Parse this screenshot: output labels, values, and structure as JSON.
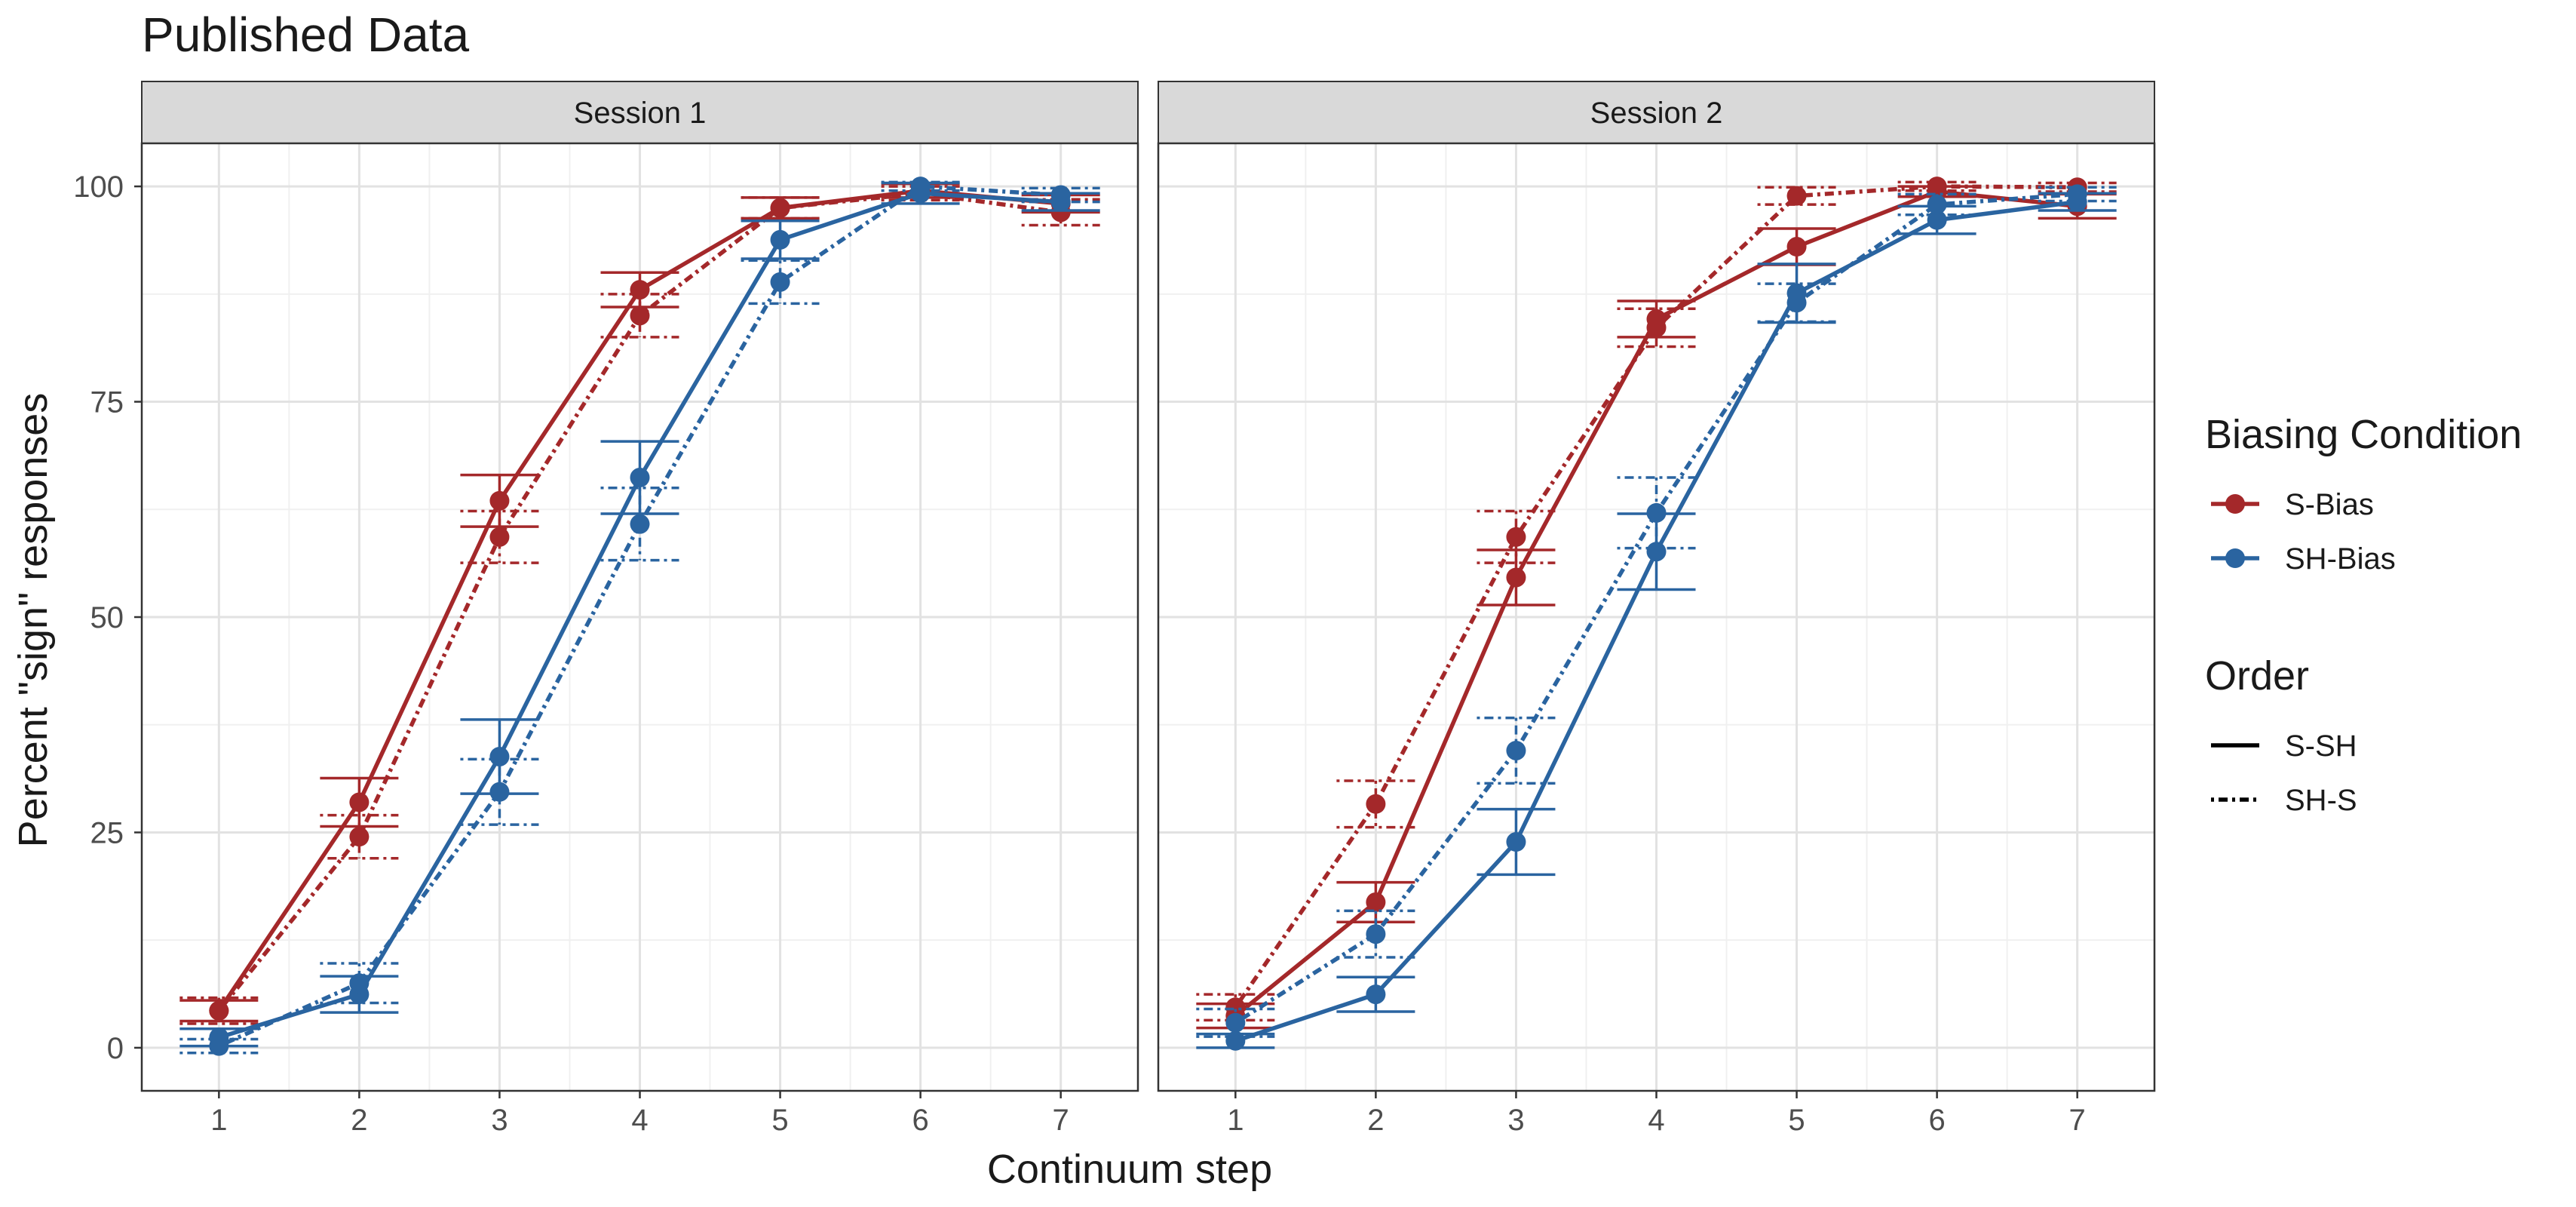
{
  "chart_data": {
    "type": "line",
    "title": "Published Data",
    "xlabel": "Continuum step",
    "ylabel": "Percent \"sign\" responses",
    "x": [
      1,
      2,
      3,
      4,
      5,
      6,
      7
    ],
    "xlim": [
      0.45,
      7.55
    ],
    "ylim": [
      -5,
      105
    ],
    "yticks": [
      0,
      25,
      50,
      75,
      100
    ],
    "grid": true,
    "colors": {
      "S-Bias": "#a4282a",
      "SH-Bias": "#2a64a0"
    },
    "legend_position": "right",
    "legend": {
      "color_title": "Biasing Condition",
      "color_items": [
        "S-Bias",
        "SH-Bias"
      ],
      "linetype_title": "Order",
      "linetype_items": [
        "S-SH",
        "SH-S"
      ]
    },
    "panels": [
      {
        "strip": "Session 1",
        "series": [
          {
            "condition": "S-Bias",
            "order": "S-SH",
            "y": [
              4.3,
              28.5,
              63.5,
              88,
              97.5,
              99.5,
              98
            ],
            "err": [
              1.2,
              2.8,
              3,
              2,
              1.2,
              0.8,
              1
            ]
          },
          {
            "condition": "S-Bias",
            "order": "SH-S",
            "y": [
              4.3,
              24.5,
              59.3,
              85,
              97.5,
              99.2,
              97
            ],
            "err": [
              1.5,
              2.5,
              3,
              2.5,
              1.2,
              0.8,
              1.5
            ]
          },
          {
            "condition": "SH-Bias",
            "order": "S-SH",
            "y": [
              1.2,
              6.2,
              33.8,
              66.2,
              93.8,
              99.2,
              98.2
            ],
            "err": [
              1,
              2.1,
              4.3,
              4.2,
              2.2,
              1.2,
              1
            ]
          },
          {
            "condition": "SH-Bias",
            "order": "SH-S",
            "y": [
              0.2,
              7.5,
              29.7,
              60.8,
              88.9,
              100,
              99
            ],
            "err": [
              0.8,
              2.3,
              3.8,
              4.2,
              2.5,
              0.5,
              0.8
            ]
          }
        ]
      },
      {
        "strip": "Session 2",
        "series": [
          {
            "condition": "S-Bias",
            "order": "S-SH",
            "y": [
              3.7,
              16.9,
              54.6,
              84.6,
              93,
              99.4,
              97.7
            ],
            "err": [
              1.4,
              2.3,
              3.2,
              2.1,
              2.1,
              0.6,
              1.4
            ]
          },
          {
            "condition": "S-Bias",
            "order": "SH-S",
            "y": [
              4.7,
              28.3,
              59.3,
              83.6,
              98.9,
              100,
              99.9
            ],
            "err": [
              1.5,
              2.7,
              3,
              2.2,
              1,
              0.5,
              0.5
            ]
          },
          {
            "condition": "SH-Bias",
            "order": "S-SH",
            "y": [
              0.8,
              6.2,
              23.9,
              57.6,
              87.6,
              96.1,
              98.2
            ],
            "err": [
              0.8,
              2,
              3.8,
              4.4,
              3.4,
              1.6,
              1
            ]
          },
          {
            "condition": "SH-Bias",
            "order": "SH-S",
            "y": [
              2.9,
              13.2,
              34.5,
              62.1,
              86.5,
              97.9,
              99.1
            ],
            "err": [
              1.6,
              2.7,
              3.8,
              4.1,
              2.2,
              1.2,
              0.8
            ]
          }
        ]
      }
    ]
  }
}
